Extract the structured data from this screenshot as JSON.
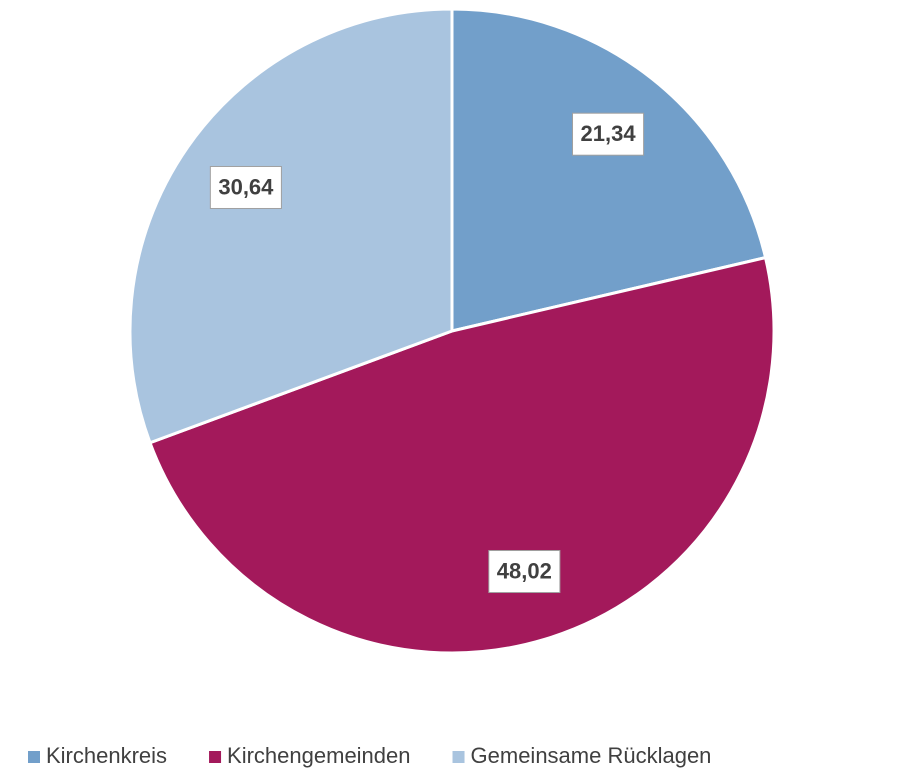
{
  "chart_data": {
    "type": "pie",
    "categories": [
      "Kirchenkreis",
      "Kirchengemeinden",
      "Gemeinsame Rücklagen"
    ],
    "values": [
      21.34,
      48.02,
      30.64
    ],
    "value_labels": [
      "21,34",
      "48,02",
      "30,64"
    ],
    "colors": [
      "#729fca",
      "#a3195b",
      "#a9c4df"
    ],
    "legend": "bottom"
  }
}
